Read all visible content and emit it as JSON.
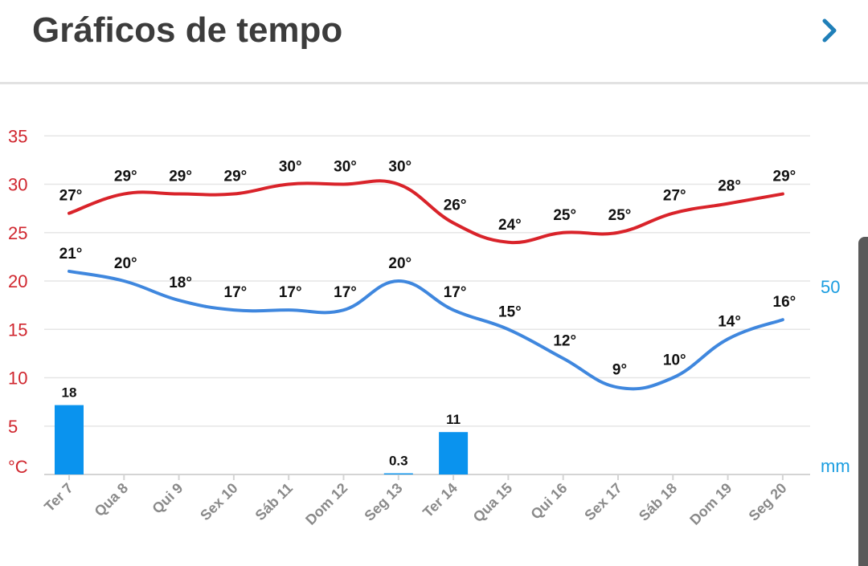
{
  "header": {
    "title": "Gráficos de tempo",
    "next_icon": "chevron-right-icon"
  },
  "colors": {
    "max_line": "#d9232a",
    "min_line": "#3f87de",
    "bars": "#0a93ee",
    "left_axis": "#d0262e",
    "right_axis": "#1a9de0",
    "grid": "#e6e6e6"
  },
  "chart_data": {
    "type": "line",
    "categories": [
      "Ter 7",
      "Qua 8",
      "Qui 9",
      "Sex 10",
      "Sáb 11",
      "Dom 12",
      "Seg 13",
      "Ter 14",
      "Qua 15",
      "Qui 16",
      "Sex 17",
      "Sáb 18",
      "Dom 19",
      "Seg 20"
    ],
    "series": [
      {
        "values": [
          27,
          29,
          29,
          29,
          30,
          30,
          30,
          26,
          24,
          25,
          25,
          27,
          28,
          29
        ],
        "labels": [
          "27°",
          "29°",
          "29°",
          "29°",
          "30°",
          "30°",
          "30°",
          "26°",
          "24°",
          "25°",
          "25°",
          "27°",
          "28°",
          "29°"
        ]
      },
      {
        "values": [
          21,
          20,
          18,
          17,
          17,
          17,
          20,
          17,
          15,
          12,
          9,
          10,
          14,
          16
        ],
        "labels": [
          "21°",
          "20°",
          "18°",
          "17°",
          "17°",
          "17°",
          "20°",
          "17°",
          "15°",
          "12°",
          "9°",
          "10°",
          "14°",
          "16°"
        ]
      }
    ],
    "precipitation": {
      "values": [
        18,
        0,
        0,
        0,
        0,
        0,
        0.3,
        11,
        0,
        0,
        0,
        0,
        0,
        0
      ],
      "labels": [
        "18",
        "",
        "",
        "",
        "",
        "",
        "0.3",
        "11",
        "",
        "",
        "",
        "",
        "",
        ""
      ]
    },
    "ylabel": "°C",
    "ylim": [
      0,
      35
    ],
    "yticks": [
      "35",
      "30",
      "25",
      "20",
      "15",
      "10",
      "5"
    ],
    "y2label": "mm",
    "y2ticks": [
      "50"
    ],
    "grid": true
  }
}
